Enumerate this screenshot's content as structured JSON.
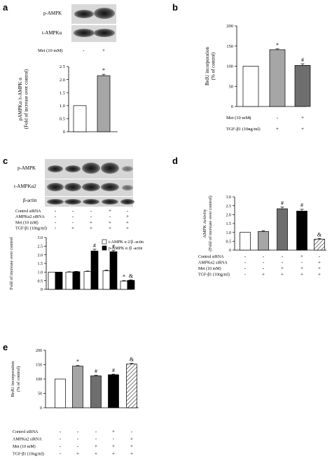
{
  "panels": [
    {
      "label": "a"
    },
    {
      "label": "b"
    },
    {
      "label": "c"
    },
    {
      "label": "d"
    },
    {
      "label": "e"
    }
  ],
  "blots": {
    "a": {
      "bands": [
        "p-AMPK",
        "t-AMPKα"
      ],
      "treatments": [
        {
          "label": "Met (10 mM)",
          "signs": [
            "-",
            "+"
          ]
        }
      ]
    },
    "c": {
      "bands": [
        "p-AMPK",
        "t-AMPKα2",
        "β-actin"
      ]
    }
  },
  "conditions": {
    "b": [
      {
        "label": "Met (10 mM)",
        "signs": [
          "-",
          "-",
          "+"
        ]
      },
      {
        "label": "TGF-β1  (10ng/ml)",
        "signs": [
          "-",
          "+",
          "+"
        ]
      }
    ],
    "c": [
      {
        "label": "Control siRNA",
        "signs": [
          "-",
          "-",
          "-",
          "+",
          "-"
        ]
      },
      {
        "label": "AMPKα2 siRNA",
        "signs": [
          "-",
          "-",
          "-",
          "-",
          "+"
        ]
      },
      {
        "label": "Met (10 mM)",
        "signs": [
          "-",
          "-",
          "+",
          "+",
          "+"
        ]
      },
      {
        "label": "TGF-β1  (10ng/ml)",
        "signs": [
          "-",
          "+",
          "+",
          "+",
          "+"
        ]
      }
    ],
    "d": [
      {
        "label": "Control siRNA",
        "signs": [
          "-",
          "-",
          "-",
          "+",
          "-"
        ]
      },
      {
        "label": "AMPKα2 siRNA",
        "signs": [
          "-",
          "-",
          "-",
          "-",
          "+"
        ]
      },
      {
        "label": "Met (10 mM)",
        "signs": [
          "-",
          "-",
          "+",
          "+",
          "+"
        ]
      },
      {
        "label": "TGF-β1  (10ng/ml)",
        "signs": [
          "-",
          "+",
          "+",
          "+",
          "+"
        ]
      }
    ],
    "e": [
      {
        "label": "Control siRNA",
        "signs": [
          "-",
          "-",
          "-",
          "+",
          "-"
        ]
      },
      {
        "label": "AMPKα2 siRNA",
        "signs": [
          "-",
          "-",
          "-",
          "-",
          "+"
        ]
      },
      {
        "label": "Met (10 mM)",
        "signs": [
          "-",
          "-",
          "+",
          "+",
          "+"
        ]
      },
      {
        "label": "TGF-β1  (10ng/ml)",
        "signs": [
          "-",
          "+",
          "+",
          "+",
          "+"
        ]
      }
    ]
  },
  "chart_data": [
    {
      "id": "a",
      "type": "bar",
      "ylabel": "pAMPKα /t-AMPK α (Fold of increase over control)",
      "ylim": [
        0,
        2.5
      ],
      "yticks": [
        "0",
        "0.5",
        "1.0",
        "1.5",
        "2.0",
        "2.5"
      ],
      "values": [
        1.0,
        2.15
      ],
      "errors": [
        0,
        0.05
      ],
      "fills": [
        "#ffffff",
        "#a6a6a6"
      ],
      "annotations": [
        "",
        "*"
      ]
    },
    {
      "id": "b",
      "type": "bar",
      "ylabel": "BrdU incorporation (% of control)",
      "ylim": [
        0,
        200
      ],
      "yticks": [
        "0",
        "50",
        "100",
        "150",
        "200"
      ],
      "values": [
        100,
        141,
        102
      ],
      "errors": [
        0,
        2,
        4
      ],
      "fills": [
        "#ffffff",
        "#a6a6a6",
        "#6e6e6e"
      ],
      "annotations": [
        "",
        "*",
        "#"
      ]
    },
    {
      "id": "c",
      "type": "bar",
      "ylabel": "Fold of increase over control",
      "ylim": [
        0,
        3.0
      ],
      "yticks": [
        "0",
        "0.5",
        "1.0",
        "1.5",
        "2.0",
        "2.5",
        "3.0"
      ],
      "series": [
        {
          "name": "t-AMPK α 2/β -actin",
          "values": [
            1.0,
            1.0,
            1.03,
            1.08,
            0.48
          ],
          "errors": [
            0,
            0.02,
            0.03,
            0.04,
            0.03
          ],
          "fill": "#ffffff"
        },
        {
          "name": "p-AMPK α /β -actin",
          "values": [
            1.0,
            1.02,
            2.22,
            2.18,
            0.52
          ],
          "errors": [
            0,
            0.02,
            0.1,
            0.08,
            0.03
          ],
          "fill": "#000000"
        }
      ],
      "annotations": [
        {
          "group": 2,
          "series": 1,
          "text": "#"
        },
        {
          "group": 3,
          "series": 1,
          "text": "#"
        },
        {
          "group": 4,
          "series": 0,
          "text": "*"
        },
        {
          "group": 4,
          "series": 1,
          "text": "&"
        }
      ],
      "legend": "top-right"
    },
    {
      "id": "d",
      "type": "bar",
      "ylabel": "AMPK Activity (Fold of increase over control)",
      "ylim": [
        0,
        3.0
      ],
      "yticks": [
        "0",
        "0.5",
        "1.0",
        "1.5",
        "2.0",
        "2.5",
        "3.0"
      ],
      "values": [
        1.0,
        1.05,
        2.33,
        2.2,
        0.62
      ],
      "errors": [
        0,
        0.05,
        0.1,
        0.1,
        0.04
      ],
      "fills": [
        "#ffffff",
        "#a6a6a6",
        "#6e6e6e",
        "#000000",
        "hatch"
      ],
      "annotations": [
        "",
        "",
        "#",
        "#",
        "&"
      ]
    },
    {
      "id": "e",
      "type": "bar",
      "ylabel": "BrdU incorporation (% of control)",
      "ylim": [
        0,
        200
      ],
      "yticks": [
        "0",
        "50",
        "100",
        "150",
        "200"
      ],
      "values": [
        100,
        145,
        111,
        115,
        152
      ],
      "errors": [
        0,
        2,
        2,
        2,
        3
      ],
      "fills": [
        "#ffffff",
        "#a6a6a6",
        "#6e6e6e",
        "#000000",
        "hatch"
      ],
      "annotations": [
        "",
        "*",
        "#",
        "#",
        "&"
      ]
    }
  ]
}
